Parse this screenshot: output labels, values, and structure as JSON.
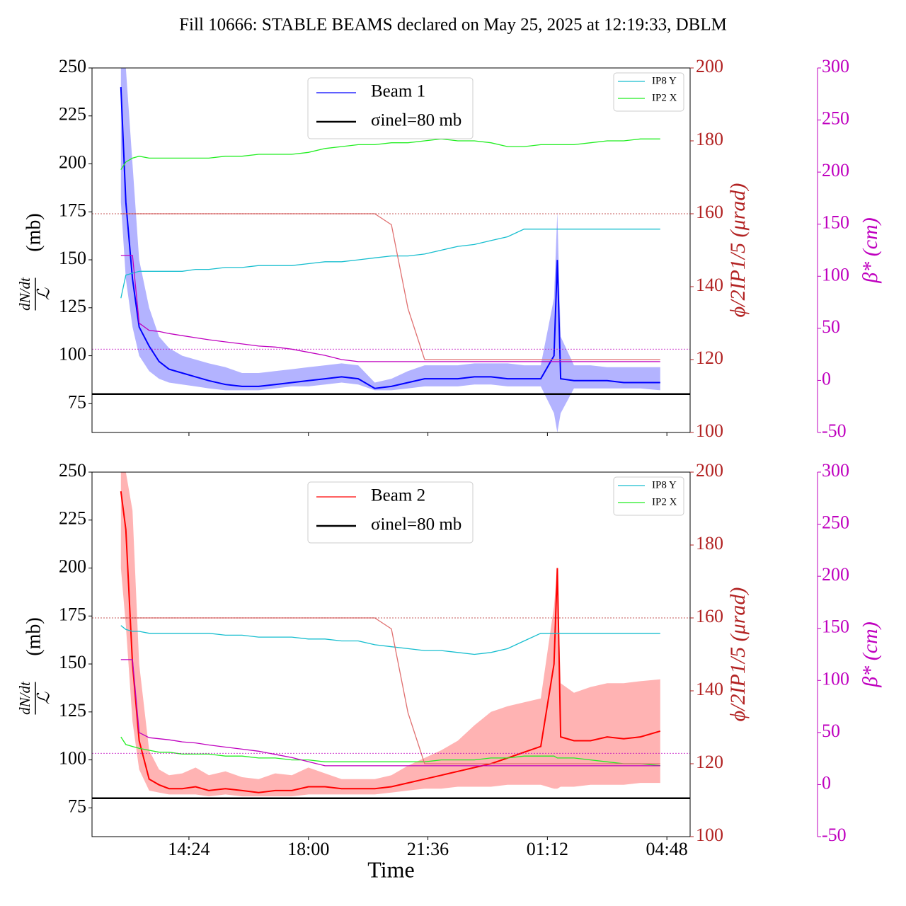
{
  "title": "Fill 10666: STABLE BEAMS declared on May 25, 2025 at 12:19:33, DBLM",
  "chart_data": [
    {
      "type": "line",
      "x": [
        12.35,
        12.5,
        12.7,
        12.9,
        13.2,
        13.5,
        13.8,
        14.2,
        14.6,
        15,
        15.5,
        16,
        16.5,
        17,
        17.5,
        18,
        18.5,
        19,
        19.5,
        20,
        20.5,
        21,
        21.5,
        22,
        22.5,
        23,
        23.5,
        24,
        24.5,
        25,
        25.4,
        25.5,
        25.6,
        26,
        26.5,
        27,
        27.5,
        28,
        28.6
      ],
      "xlim": [
        11.48,
        29.5
      ],
      "xticks": [
        14.4,
        18,
        21.6,
        25.2,
        28.8
      ],
      "ylim": [
        60,
        250
      ],
      "yticks": [
        75,
        100,
        125,
        150,
        175,
        200,
        225,
        250
      ],
      "y2lim": [
        100,
        200
      ],
      "y2ticks": [
        100,
        120,
        140,
        160,
        180,
        200
      ],
      "y2color": "#b22222",
      "y3lim": [
        -50,
        300
      ],
      "y3ticks": [
        -50,
        0,
        50,
        100,
        150,
        200,
        250,
        300
      ],
      "y3color": "#bf00bf",
      "y2_ref": 160,
      "y3_ref": 30,
      "ylabel": {
        "numerator": "dN/dt",
        "denominator": "ℒ",
        "unit": "(mb)"
      },
      "y2label": "ϕ/2IP1/5 (μrad)",
      "y3label": "β* (cm)",
      "series": [
        {
          "name": "Beam 1",
          "color": "#0000ff",
          "band_color": "#8080ff",
          "legend": "upper center",
          "values": [
            240,
            180,
            140,
            115,
            105,
            97,
            93,
            91,
            89,
            87,
            85,
            84,
            84,
            85,
            86,
            87,
            88,
            89,
            88,
            83,
            84,
            86,
            88,
            88,
            88,
            89,
            89,
            88,
            88,
            88,
            100,
            150,
            88,
            87,
            87,
            87,
            86,
            86,
            86
          ],
          "band_low": [
            180,
            140,
            115,
            100,
            92,
            88,
            86,
            85,
            84,
            83,
            82,
            82,
            82,
            83,
            84,
            84,
            85,
            86,
            85,
            82,
            82,
            83,
            84,
            84,
            84,
            85,
            85,
            84,
            84,
            84,
            70,
            60,
            70,
            83,
            83,
            83,
            83,
            83,
            82
          ],
          "band_high": [
            250,
            250,
            200,
            150,
            125,
            110,
            104,
            100,
            98,
            96,
            94,
            91,
            91,
            92,
            93,
            94,
            95,
            96,
            95,
            86,
            88,
            92,
            95,
            95,
            95,
            96,
            96,
            96,
            95,
            95,
            130,
            175,
            110,
            95,
            95,
            94,
            94,
            94,
            94
          ]
        },
        {
          "name": "σinel=80 mb",
          "color": "#000000",
          "value": 80,
          "legend": "upper center"
        },
        {
          "name": "IP8 Y",
          "color": "#17becf",
          "legend": "upper right",
          "values": [
            130,
            142,
            143,
            144,
            144,
            144,
            144,
            144,
            145,
            145,
            146,
            146,
            147,
            147,
            147,
            148,
            149,
            149,
            150,
            151,
            152,
            152,
            153,
            155,
            157,
            158,
            160,
            162,
            166,
            166,
            166,
            166,
            166,
            166,
            166,
            166,
            166,
            166,
            166
          ]
        },
        {
          "name": "IP2 X",
          "color": "#22ee22",
          "legend": "upper right",
          "values": [
            197,
            201,
            203,
            204,
            203,
            203,
            203,
            203,
            203,
            203,
            204,
            204,
            205,
            205,
            205,
            206,
            208,
            209,
            210,
            210,
            211,
            211,
            212,
            213,
            212,
            212,
            211,
            209,
            209,
            210,
            210,
            210,
            210,
            210,
            211,
            212,
            212,
            213,
            213
          ]
        },
        {
          "color": "#e07070",
          "axis": "y2",
          "values": [
            160,
            160,
            160,
            160,
            160,
            160,
            160,
            160,
            160,
            160,
            160,
            160,
            160,
            160,
            160,
            160,
            160,
            160,
            160,
            160,
            157,
            134,
            120,
            120,
            120,
            120,
            120,
            120,
            120,
            120,
            120,
            120,
            120,
            120,
            120,
            120,
            120,
            120,
            120
          ]
        },
        {
          "color": "#bf00bf",
          "axis": "y3",
          "values": [
            120,
            120,
            120,
            55,
            48,
            47,
            45,
            43,
            41,
            39,
            37,
            35,
            33,
            32,
            30,
            27,
            24,
            20,
            18,
            18,
            18,
            18,
            18,
            18,
            18,
            18,
            18,
            18,
            18,
            18,
            18,
            18,
            18,
            18,
            18,
            18,
            18,
            18,
            18
          ]
        }
      ]
    },
    {
      "type": "line",
      "x": [
        12.35,
        12.5,
        12.7,
        12.9,
        13.2,
        13.5,
        13.8,
        14.2,
        14.6,
        15,
        15.5,
        16,
        16.5,
        17,
        17.5,
        18,
        18.5,
        19,
        19.5,
        20,
        20.5,
        21,
        21.5,
        22,
        22.5,
        23,
        23.5,
        24,
        24.5,
        25,
        25.4,
        25.5,
        25.6,
        26,
        26.5,
        27,
        27.5,
        28,
        28.6
      ],
      "xlim": [
        11.48,
        29.5
      ],
      "xticks": [
        {
          "value": 14.4,
          "label": "14:24"
        },
        {
          "value": 18,
          "label": "18:00"
        },
        {
          "value": 21.6,
          "label": "21:36"
        },
        {
          "value": 25.2,
          "label": "01:12"
        },
        {
          "value": 28.8,
          "label": "04:48"
        }
      ],
      "xlabel": "Time",
      "ylim": [
        60,
        250
      ],
      "yticks": [
        75,
        100,
        125,
        150,
        175,
        200,
        225,
        250
      ],
      "y2lim": [
        100,
        200
      ],
      "y2ticks": [
        100,
        120,
        140,
        160,
        180,
        200
      ],
      "y2color": "#b22222",
      "y3lim": [
        -50,
        300
      ],
      "y3ticks": [
        -50,
        0,
        50,
        100,
        150,
        200,
        250,
        300
      ],
      "y3color": "#bf00bf",
      "y2_ref": 160,
      "y3_ref": 30,
      "ylabel": {
        "numerator": "dN/dt",
        "denominator": "ℒ",
        "unit": "(mb)"
      },
      "y2label": "ϕ/2IP1/5 (μrad)",
      "y3label": "β* (cm)",
      "series": [
        {
          "name": "Beam 2",
          "color": "#ff0000",
          "band_color": "#ff8080",
          "legend": "upper center",
          "values": [
            240,
            220,
            150,
            110,
            90,
            87,
            85,
            85,
            86,
            84,
            85,
            84,
            83,
            84,
            84,
            86,
            86,
            85,
            85,
            85,
            86,
            88,
            90,
            92,
            94,
            96,
            98,
            101,
            104,
            107,
            150,
            200,
            112,
            110,
            110,
            112,
            111,
            112,
            115
          ],
          "band_low": [
            200,
            170,
            120,
            95,
            84,
            83,
            82,
            82,
            82,
            81,
            82,
            81,
            81,
            81,
            81,
            82,
            82,
            82,
            82,
            82,
            83,
            84,
            85,
            85,
            86,
            86,
            86,
            87,
            87,
            87,
            85,
            85,
            86,
            86,
            87,
            87,
            87,
            88,
            88
          ],
          "band_high": [
            250,
            250,
            230,
            150,
            105,
            95,
            92,
            93,
            96,
            92,
            94,
            91,
            90,
            93,
            92,
            96,
            93,
            90,
            90,
            90,
            92,
            97,
            101,
            105,
            110,
            118,
            125,
            128,
            130,
            132,
            180,
            200,
            140,
            135,
            138,
            140,
            140,
            141,
            142
          ]
        },
        {
          "name": "σinel=80 mb",
          "color": "#000000",
          "value": 80,
          "legend": "upper center"
        },
        {
          "name": "IP8 Y",
          "color": "#17becf",
          "legend": "upper right",
          "values": [
            170,
            168,
            167,
            167,
            166,
            166,
            166,
            166,
            166,
            166,
            165,
            165,
            164,
            164,
            164,
            163,
            163,
            162,
            162,
            160,
            159,
            158,
            157,
            157,
            156,
            155,
            156,
            158,
            162,
            166,
            166,
            166,
            166,
            166,
            166,
            166,
            166,
            166,
            166
          ]
        },
        {
          "name": "IP2 X",
          "color": "#22ee22",
          "legend": "upper right",
          "values": [
            112,
            108,
            107,
            106,
            105,
            104,
            104,
            103,
            103,
            103,
            102,
            102,
            101,
            101,
            100,
            100,
            99,
            99,
            99,
            99,
            99,
            99,
            99,
            100,
            100,
            100,
            101,
            101,
            102,
            102,
            102,
            101,
            101,
            101,
            100,
            99,
            98,
            98,
            97
          ]
        },
        {
          "color": "#e07070",
          "axis": "y2",
          "values": [
            160,
            160,
            160,
            160,
            160,
            160,
            160,
            160,
            160,
            160,
            160,
            160,
            160,
            160,
            160,
            160,
            160,
            160,
            160,
            160,
            157,
            134,
            120,
            120,
            120,
            120,
            120,
            120,
            120,
            120,
            120,
            120,
            120,
            120,
            120,
            120,
            120,
            120,
            120
          ]
        },
        {
          "color": "#bf00bf",
          "axis": "y3",
          "values": [
            120,
            120,
            120,
            50,
            45,
            44,
            43,
            41,
            40,
            38,
            36,
            34,
            32,
            29,
            26,
            22,
            18,
            18,
            18,
            18,
            18,
            18,
            18,
            18,
            18,
            18,
            18,
            18,
            18,
            18,
            18,
            18,
            18,
            18,
            18,
            18,
            18,
            18,
            18
          ]
        }
      ]
    }
  ]
}
